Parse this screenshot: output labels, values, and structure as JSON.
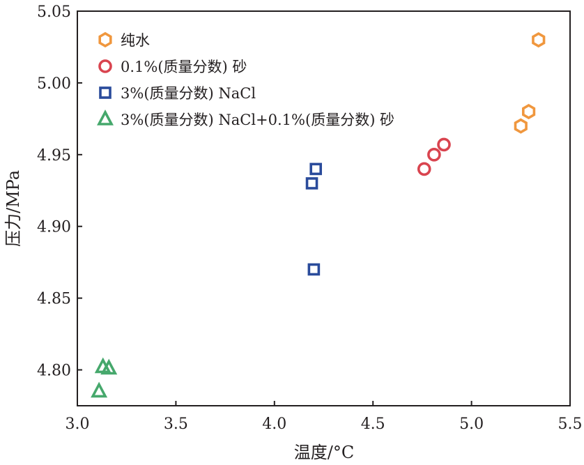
{
  "chart_data": {
    "type": "scatter",
    "xlabel": "温度/°C",
    "ylabel": "压力/MPa",
    "xlim": [
      3.0,
      5.5
    ],
    "ylim": [
      4.775,
      5.05
    ],
    "xticks": [
      "3.0",
      "3.5",
      "4.0",
      "4.5",
      "5.0",
      "5.5"
    ],
    "yticks": [
      "4.80",
      "4.85",
      "4.90",
      "4.95",
      "5.00",
      "5.05"
    ],
    "grid": false,
    "legend_position": "top-left",
    "series": [
      {
        "name": "纯水",
        "marker": "hexagon",
        "color": "#f0973e",
        "points": [
          [
            5.25,
            4.97
          ],
          [
            5.29,
            4.98
          ],
          [
            5.34,
            5.03
          ]
        ]
      },
      {
        "name": "0.1%(质量分数) 砂",
        "marker": "circle",
        "color": "#d9444f",
        "points": [
          [
            4.76,
            4.94
          ],
          [
            4.81,
            4.95
          ],
          [
            4.86,
            4.957
          ]
        ]
      },
      {
        "name": "3%(质量分数) NaCl",
        "marker": "square",
        "color": "#2a4b9b",
        "points": [
          [
            4.19,
            4.93
          ],
          [
            4.21,
            4.94
          ],
          [
            4.2,
            4.87
          ]
        ]
      },
      {
        "name": "3%(质量分数) NaCl+0.1%(质量分数) 砂",
        "marker": "triangle",
        "color": "#46a86c",
        "points": [
          [
            3.11,
            4.785
          ],
          [
            3.13,
            4.802
          ],
          [
            3.16,
            4.801
          ]
        ]
      }
    ]
  }
}
